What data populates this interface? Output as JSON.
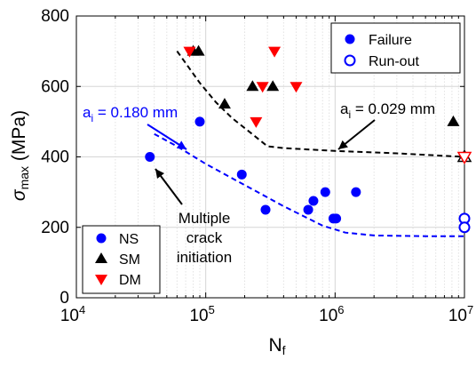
{
  "chart_data": {
    "type": "scatter",
    "x_scale": "log",
    "xlim": [
      10000,
      10000000
    ],
    "ylim": [
      0,
      800
    ],
    "grid": true,
    "xlabel": {
      "base": "N",
      "sub": "f"
    },
    "ylabel": {
      "greek": "σ",
      "sub": "max",
      "rest": " (MPa)"
    },
    "x_ticks": [
      {
        "value": 10000,
        "base": "10",
        "exp": "4"
      },
      {
        "value": 100000,
        "base": "10",
        "exp": "5"
      },
      {
        "value": 1000000,
        "base": "10",
        "exp": "6"
      },
      {
        "value": 10000000,
        "base": "10",
        "exp": "7"
      }
    ],
    "y_ticks": [
      {
        "value": 0,
        "label": "0"
      },
      {
        "value": 200,
        "label": "200"
      },
      {
        "value": 400,
        "label": "400"
      },
      {
        "value": 600,
        "label": "600"
      },
      {
        "value": 800,
        "label": "800"
      }
    ],
    "colors": {
      "NS": "#0000ff",
      "SM": "#000000",
      "DM": "#ff0000",
      "curve_blue": "#0000ff",
      "curve_black": "#000000"
    },
    "series": [
      {
        "name": "NS",
        "marker": "circle",
        "failure": [
          {
            "x": 37000,
            "y": 400
          },
          {
            "x": 90000,
            "y": 500
          },
          {
            "x": 190000,
            "y": 350
          },
          {
            "x": 290000,
            "y": 250
          },
          {
            "x": 620000,
            "y": 250
          },
          {
            "x": 680000,
            "y": 275
          },
          {
            "x": 840000,
            "y": 300
          },
          {
            "x": 970000,
            "y": 225
          },
          {
            "x": 1020000,
            "y": 225
          },
          {
            "x": 1450000,
            "y": 300
          }
        ],
        "runout": [
          {
            "x": 10000000,
            "y": 225
          },
          {
            "x": 10000000,
            "y": 200
          }
        ]
      },
      {
        "name": "SM",
        "marker": "triangle-up",
        "failure": [
          {
            "x": 80000,
            "y": 700
          },
          {
            "x": 88000,
            "y": 700
          },
          {
            "x": 140000,
            "y": 550
          },
          {
            "x": 230000,
            "y": 600
          },
          {
            "x": 330000,
            "y": 600
          },
          {
            "x": 8200000,
            "y": 500
          }
        ],
        "runout": [
          {
            "x": 10000000,
            "y": 400
          }
        ]
      },
      {
        "name": "DM",
        "marker": "triangle-down",
        "failure": [
          {
            "x": 75000,
            "y": 700
          },
          {
            "x": 245000,
            "y": 500
          },
          {
            "x": 275000,
            "y": 600
          },
          {
            "x": 340000,
            "y": 700
          },
          {
            "x": 500000,
            "y": 600
          }
        ],
        "runout": [
          {
            "x": 10000000,
            "y": 400
          }
        ]
      }
    ],
    "curves": [
      {
        "name": "a_i = 0.029 mm",
        "color": "#000000",
        "style": "dashed",
        "points": [
          {
            "x": 60000,
            "y": 700
          },
          {
            "x": 90000,
            "y": 610
          },
          {
            "x": 120000,
            "y": 555
          },
          {
            "x": 160000,
            "y": 510
          },
          {
            "x": 220000,
            "y": 470
          },
          {
            "x": 300000,
            "y": 430
          },
          {
            "x": 400000,
            "y": 425
          },
          {
            "x": 1000000,
            "y": 417
          },
          {
            "x": 3000000,
            "y": 410
          },
          {
            "x": 10000000,
            "y": 400
          }
        ]
      },
      {
        "name": "a_i = 0.180 mm",
        "color": "#0000ff",
        "style": "dashed",
        "points": [
          {
            "x": 40000,
            "y": 465
          },
          {
            "x": 60000,
            "y": 430
          },
          {
            "x": 100000,
            "y": 380
          },
          {
            "x": 200000,
            "y": 320
          },
          {
            "x": 400000,
            "y": 260
          },
          {
            "x": 800000,
            "y": 205
          },
          {
            "x": 1200000,
            "y": 185
          },
          {
            "x": 2000000,
            "y": 177
          },
          {
            "x": 5000000,
            "y": 175
          },
          {
            "x": 10000000,
            "y": 175
          }
        ]
      }
    ],
    "legends": {
      "status": [
        {
          "label": "Failure",
          "marker": "filled-circle"
        },
        {
          "label": "Run-out",
          "marker": "open-circle"
        }
      ],
      "material": [
        "NS",
        "SM",
        "DM"
      ]
    },
    "annotations": [
      {
        "id": "black",
        "text_base": "a",
        "text_sub": "i",
        "text_rest": " = 0.029 mm",
        "color": "#000000"
      },
      {
        "id": "blue",
        "text_base": "a",
        "text_sub": "i",
        "text_rest": " = 0.180 mm",
        "color": "#0000ff"
      },
      {
        "id": "multiple",
        "lines": [
          "Multiple",
          "crack",
          "initiation"
        ],
        "color": "#000000"
      }
    ]
  }
}
